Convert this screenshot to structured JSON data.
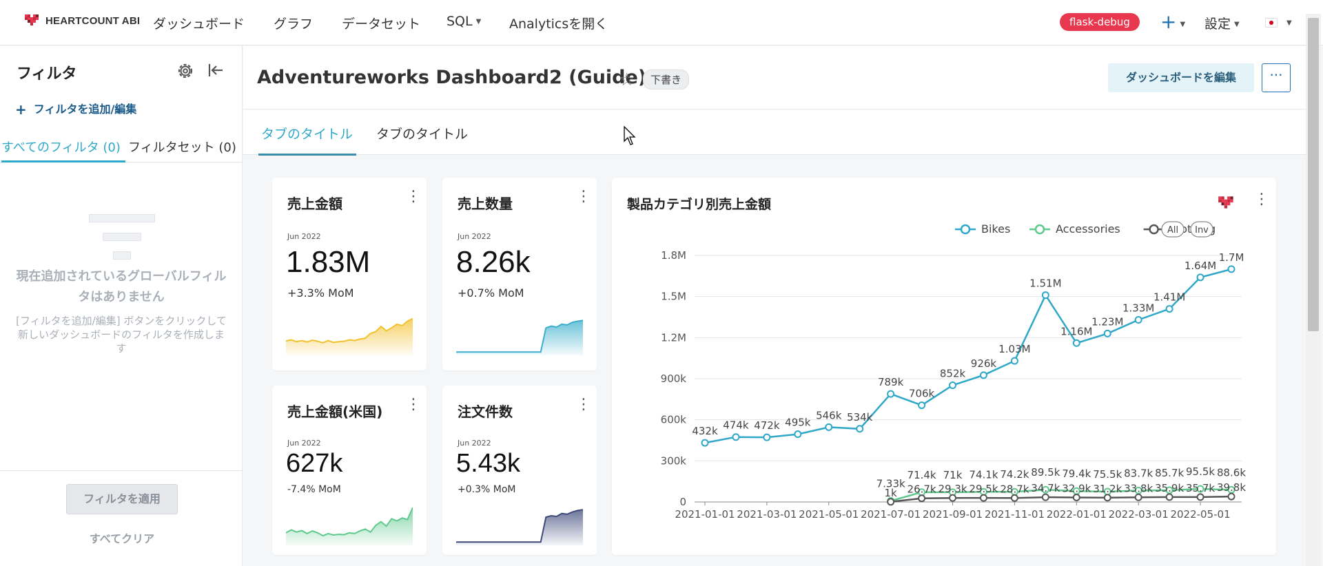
{
  "nav": {
    "brand": "HEARTCOUNT ABI",
    "items": [
      "ダッシュボード",
      "グラフ",
      "データセット",
      "SQL",
      "Analyticsを開く"
    ],
    "debug_badge": "flask-debug",
    "plus": "+",
    "settings": "設定"
  },
  "sidebar": {
    "title": "フィルタ",
    "add_label": "フィルタを追加/編集",
    "tabs": [
      "すべてのフィルタ (0)",
      "フィルタセット (0)"
    ],
    "empty_title": "現在追加されているグローバルフィルタはありません",
    "empty_desc": "[フィルタを追加/編集] ボタンをクリックして新しいダッシュボードのフィルタを作成します",
    "apply_label": "フィルタを適用",
    "clear_label": "すべてクリア"
  },
  "header": {
    "title": "Adventureworks Dashboard2 (Guide)",
    "status": "下書き",
    "edit_label": "ダッシュボードを編集",
    "more_label": "···"
  },
  "tabs": [
    "タブのタイトル",
    "タブのタイトル"
  ],
  "cards": [
    {
      "title": "売上金額",
      "period": "Jun 2022",
      "value": "1.83M",
      "delta": "+3.3% MoM",
      "color": "#f2c12e",
      "spark": [
        0.35,
        0.38,
        0.33,
        0.36,
        0.32,
        0.37,
        0.34,
        0.3,
        0.36,
        0.31,
        0.33,
        0.34,
        0.38,
        0.36,
        0.4,
        0.42,
        0.55,
        0.6,
        0.74,
        0.62,
        0.7,
        0.8,
        0.76,
        0.88,
        0.95
      ]
    },
    {
      "title": "売上数量",
      "period": "Jun 2022",
      "value": "8.26k",
      "delta": "+0.7% MoM",
      "color": "#3aaecb",
      "spark": [
        0.05,
        0.05,
        0.05,
        0.05,
        0.05,
        0.05,
        0.05,
        0.05,
        0.05,
        0.05,
        0.05,
        0.05,
        0.05,
        0.05,
        0.05,
        0.05,
        0.05,
        0.7,
        0.75,
        0.72,
        0.8,
        0.78,
        0.85,
        0.88,
        0.9
      ]
    },
    {
      "title": "売上金額(米国)",
      "period": "Jun 2022",
      "value": "627k",
      "delta": "-7.4% MoM",
      "color": "#5fc98d",
      "spark": [
        0.3,
        0.38,
        0.32,
        0.36,
        0.28,
        0.35,
        0.3,
        0.22,
        0.28,
        0.24,
        0.26,
        0.25,
        0.3,
        0.28,
        0.35,
        0.4,
        0.32,
        0.5,
        0.6,
        0.48,
        0.68,
        0.62,
        0.7,
        0.66,
        0.98
      ]
    },
    {
      "title": "注文件数",
      "period": "Jun 2022",
      "value": "5.43k",
      "delta": "+0.3% MoM",
      "color": "#3e4a7a",
      "spark": [
        0.05,
        0.05,
        0.05,
        0.05,
        0.05,
        0.05,
        0.05,
        0.05,
        0.05,
        0.05,
        0.05,
        0.05,
        0.05,
        0.05,
        0.05,
        0.05,
        0.05,
        0.72,
        0.76,
        0.74,
        0.82,
        0.8,
        0.86,
        0.9,
        0.92
      ]
    }
  ],
  "chart_data": {
    "type": "line",
    "title": "製品カテゴリ別売上金額",
    "x": [
      "2021-01-01",
      "2021-02-01",
      "2021-03-01",
      "2021-04-01",
      "2021-05-01",
      "2021-06-01",
      "2021-07-01",
      "2021-08-01",
      "2021-09-01",
      "2021-10-01",
      "2021-11-01",
      "2021-12-01",
      "2022-01-01",
      "2022-02-01",
      "2022-03-01",
      "2022-04-01",
      "2022-05-01",
      "2022-06-01"
    ],
    "x_ticks": [
      "2021-01-01",
      "2021-03-01",
      "2021-05-01",
      "2021-07-01",
      "2021-09-01",
      "2021-11-01",
      "2022-01-01",
      "2022-03-01",
      "2022-05-01"
    ],
    "y_ticks": [
      "0",
      "300k",
      "600k",
      "900k",
      "1.2M",
      "1.5M",
      "1.8M"
    ],
    "ylim": [
      0,
      1800000
    ],
    "legend_placement": "top-right",
    "legend_buttons": [
      "All",
      "Inv"
    ],
    "series": [
      {
        "name": "Bikes",
        "color": "#2ea7c8",
        "values": [
          432000,
          474000,
          472000,
          495000,
          546000,
          534000,
          789000,
          706000,
          852000,
          926000,
          1030000,
          1510000,
          1160000,
          1230000,
          1330000,
          1410000,
          1640000,
          1700000
        ],
        "labels": [
          "432k",
          "474k",
          "472k",
          "495k",
          "546k",
          "534k",
          "789k",
          "706k",
          "852k",
          "926k",
          "1.03M",
          "1.51M",
          "1.16M",
          "1.23M",
          "1.33M",
          "1.41M",
          "1.64M",
          "1.7M"
        ]
      },
      {
        "name": "Accessories",
        "color": "#5fc98d",
        "values": [
          null,
          null,
          null,
          null,
          null,
          null,
          7330,
          71400,
          71000,
          74100,
          74200,
          89500,
          79400,
          75500,
          83700,
          85700,
          95500,
          88600
        ],
        "labels": [
          "",
          "",
          "",
          "",
          "",
          "",
          "7.33k",
          "71.4k",
          "71k",
          "74.1k",
          "74.2k",
          "89.5k",
          "79.4k",
          "75.5k",
          "83.7k",
          "85.7k",
          "95.5k",
          "88.6k"
        ]
      },
      {
        "name": "Clothing",
        "color": "#555555",
        "values": [
          null,
          null,
          null,
          null,
          null,
          null,
          1000,
          26700,
          29300,
          29500,
          28700,
          34700,
          32900,
          31200,
          33800,
          35900,
          35700,
          39800
        ],
        "labels": [
          "",
          "",
          "",
          "",
          "",
          "",
          "1k",
          "26.7k",
          "29.3k",
          "29.5k",
          "28.7k",
          "34.7k",
          "32.9k",
          "31.2k",
          "33.8k",
          "35.9k",
          "35.7k",
          "39.8k"
        ]
      }
    ]
  }
}
